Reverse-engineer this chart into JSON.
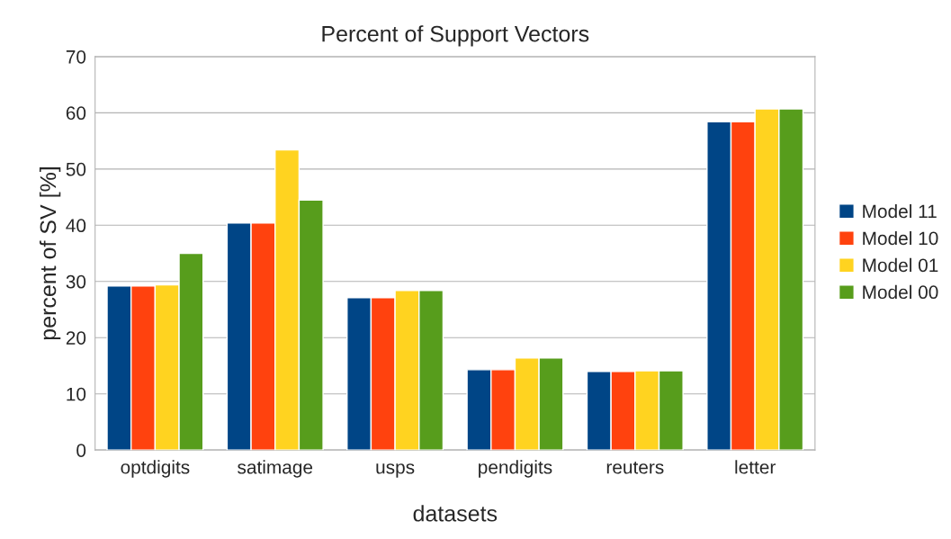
{
  "chart_data": {
    "type": "bar",
    "title": "Percent of Support Vectors",
    "xlabel": "datasets",
    "ylabel": "percent of SV [%]",
    "categories": [
      "optdigits",
      "satimage",
      "usps",
      "pendigits",
      "reuters",
      "letter"
    ],
    "series": [
      {
        "name": "Model 11",
        "color": "#004586",
        "values": [
          29.2,
          40.4,
          27.1,
          14.3,
          14.0,
          58.4
        ]
      },
      {
        "name": "Model 10",
        "color": "#ff420e",
        "values": [
          29.2,
          40.4,
          27.1,
          14.3,
          14.0,
          58.4
        ]
      },
      {
        "name": "Model 01",
        "color": "#ffd320",
        "values": [
          29.4,
          53.4,
          28.4,
          16.4,
          14.1,
          60.7
        ]
      },
      {
        "name": "Model 00",
        "color": "#579d1c",
        "values": [
          35.0,
          44.5,
          28.4,
          16.4,
          14.1,
          60.7
        ]
      }
    ],
    "ylim": [
      0,
      70
    ],
    "yticks": [
      0,
      10,
      20,
      30,
      40,
      50,
      60,
      70
    ],
    "grid": "y",
    "legend": "right"
  }
}
